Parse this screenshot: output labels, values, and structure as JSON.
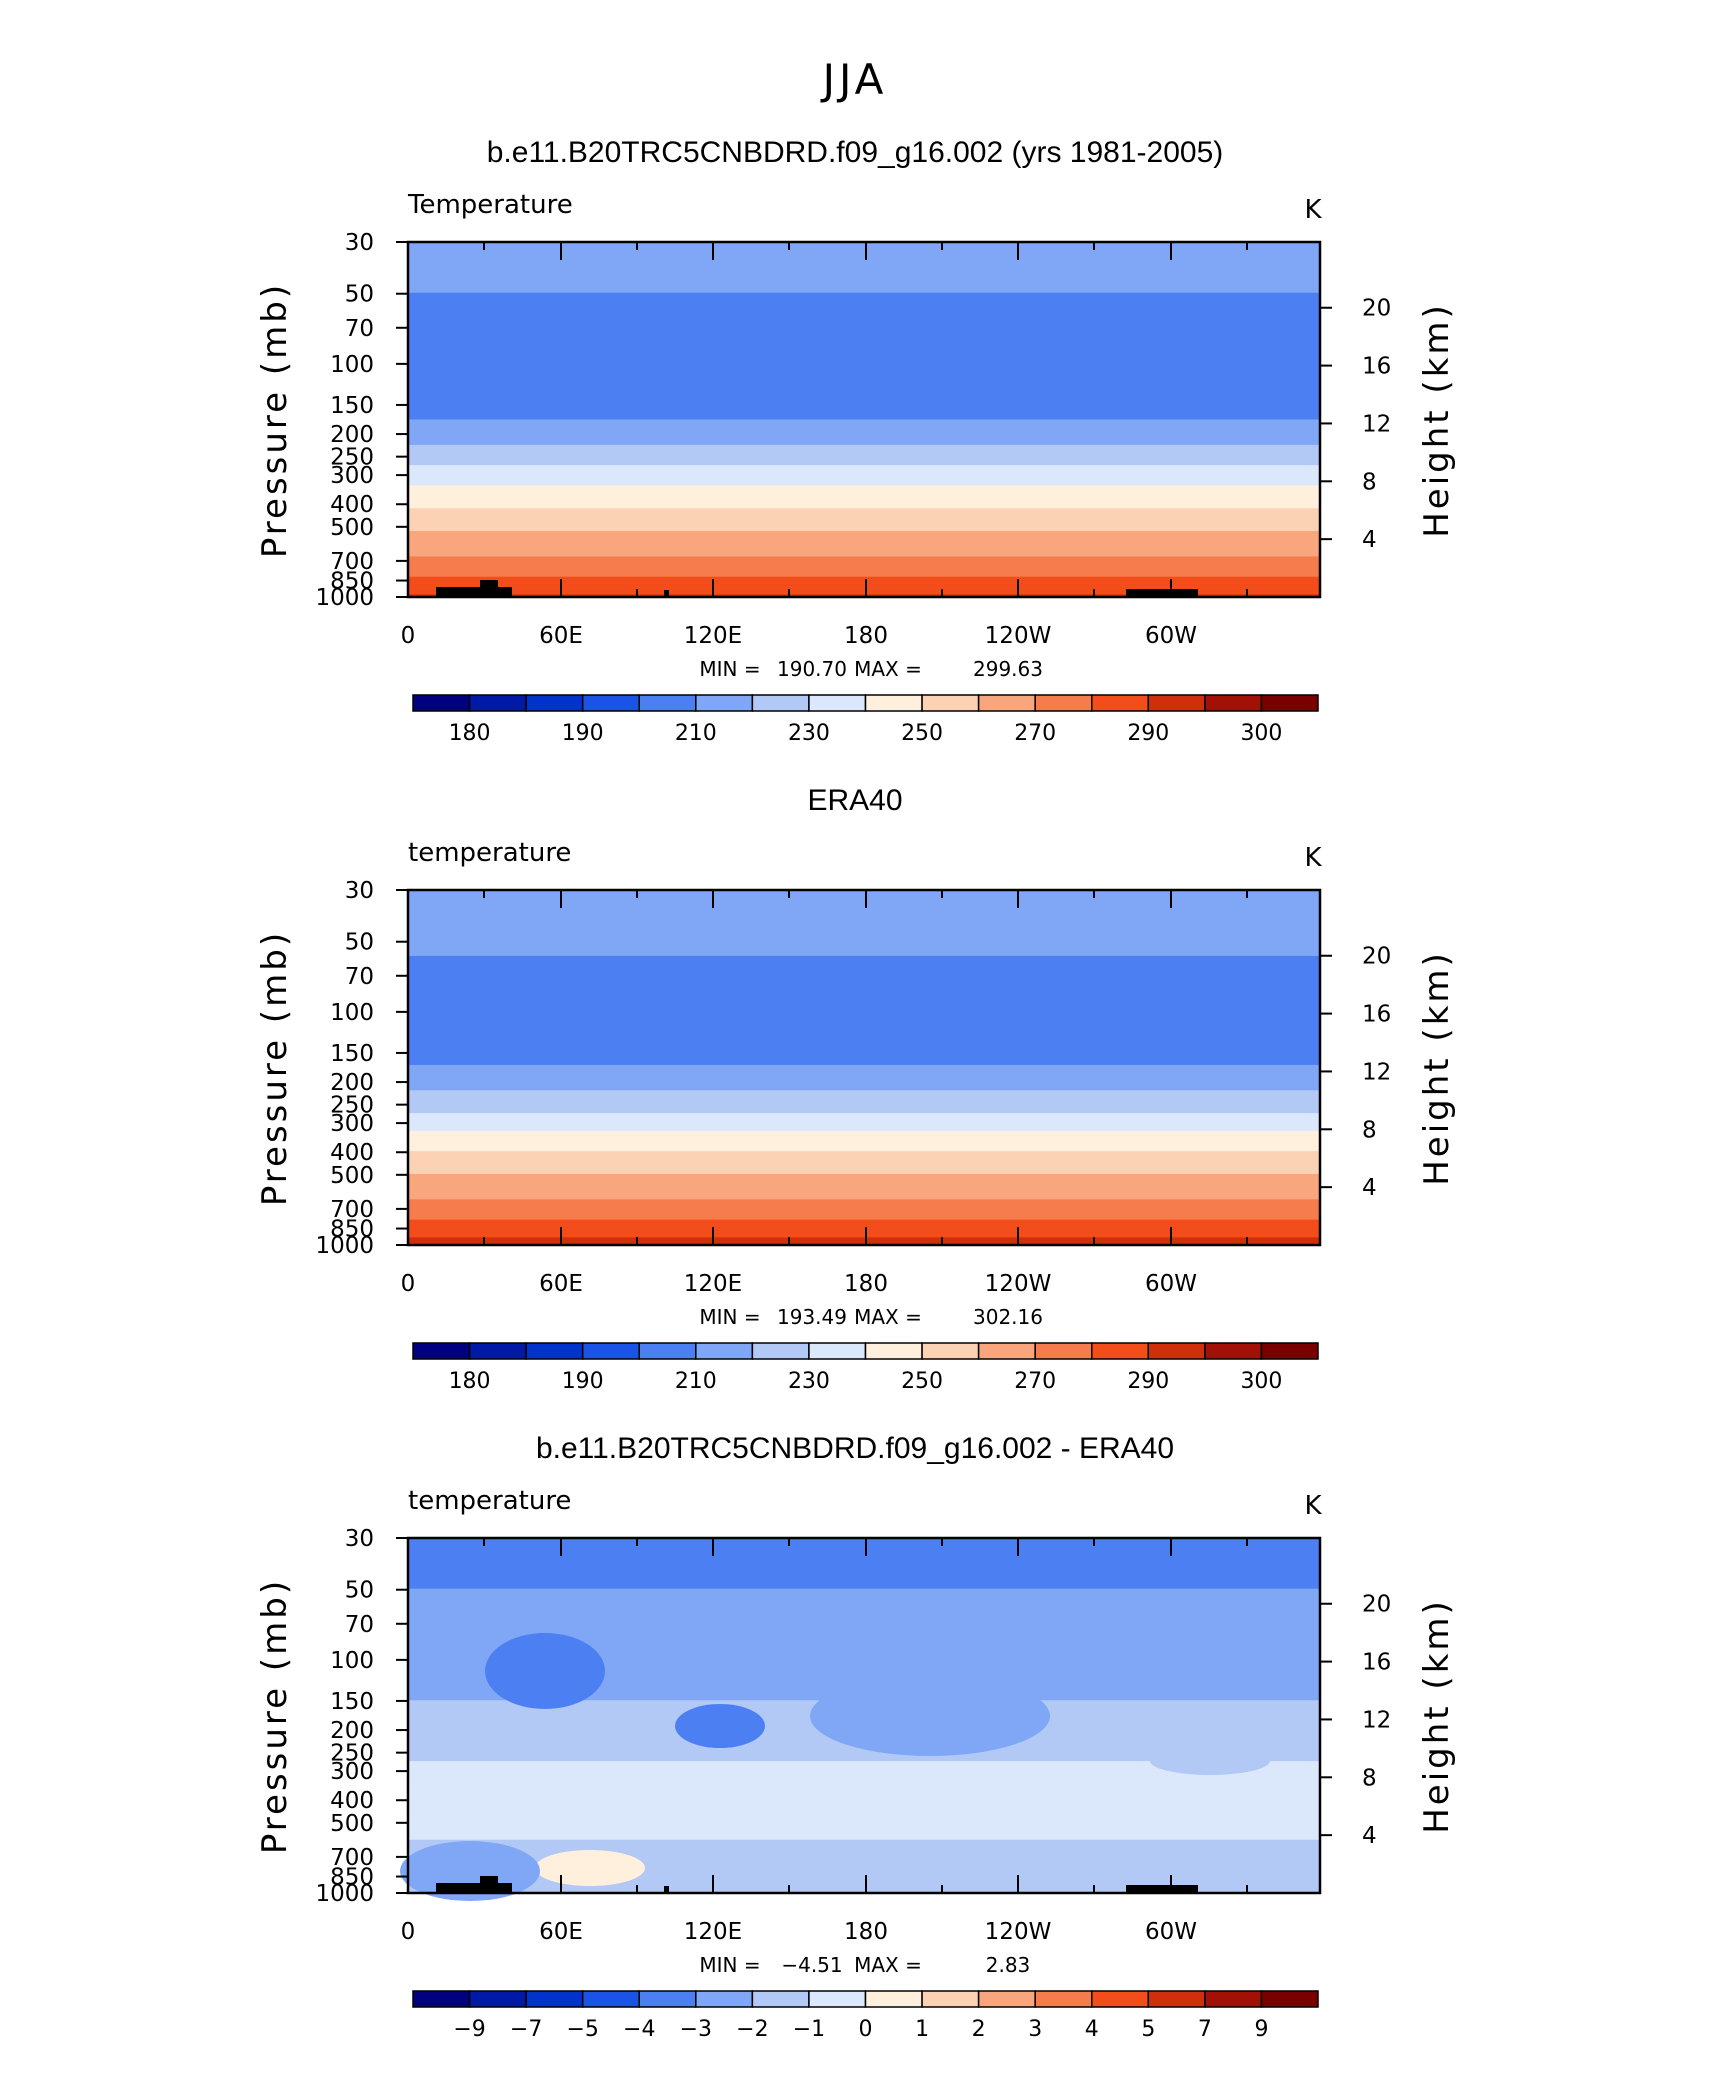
{
  "figure": {
    "title": "JJA"
  },
  "colors": {
    "absolute_scale": [
      "#000080",
      "#0019a6",
      "#0033cc",
      "#1a53e6",
      "#4c80f2",
      "#80a7f5",
      "#b3c9f5",
      "#dbe7fb",
      "#fff0dd",
      "#fcd2b4",
      "#f9a67e",
      "#f77c4d",
      "#f24d1a",
      "#d12f0b",
      "#a31006",
      "#7a0000"
    ],
    "diff_scale": [
      "#000080",
      "#0019a6",
      "#0033cc",
      "#1a53e6",
      "#4c80f2",
      "#80a7f5",
      "#b3c9f5",
      "#dbe7fb",
      "#fff0dd",
      "#fcd2b4",
      "#f9a67e",
      "#f77c4d",
      "#f24d1a",
      "#d12f0b",
      "#a31006",
      "#7a0000"
    ],
    "topography": "#000000"
  },
  "chart_data": [
    {
      "type": "heatmap",
      "title": "b.e11.B20TRC5CNBDRD.f09_g16.002 (yrs 1981-2005)",
      "variable_label": "Temperature",
      "units": "K",
      "xlabel": "",
      "ylabel": "Pressure (mb)",
      "ylabel_right": "Height (km)",
      "x_ticks": [
        "0",
        "60E",
        "120E",
        "180",
        "120W",
        "60W"
      ],
      "y_ticks": [
        "30",
        "50",
        "70",
        "100",
        "150",
        "200",
        "250",
        "300",
        "400",
        "500",
        "700",
        "850",
        "1000"
      ],
      "y_ticks_right": [
        "20",
        "16",
        "12",
        "8",
        "4"
      ],
      "ylim": [
        1000,
        30
      ],
      "y_scale": "log",
      "stats": {
        "min_label": "MIN =",
        "min": "190.70",
        "max_label": "MAX =",
        "max": "299.63"
      },
      "colorbar_labels": [
        "180",
        "190",
        "210",
        "230",
        "250",
        "270",
        "290",
        "300"
      ],
      "topography": true,
      "zonal_mean_profile": [
        {
          "p": 30,
          "T": 218
        },
        {
          "p": 50,
          "T": 210
        },
        {
          "p": 70,
          "T": 205
        },
        {
          "p": 100,
          "T": 200
        },
        {
          "p": 150,
          "T": 205
        },
        {
          "p": 200,
          "T": 215
        },
        {
          "p": 250,
          "T": 225
        },
        {
          "p": 300,
          "T": 235
        },
        {
          "p": 400,
          "T": 248
        },
        {
          "p": 500,
          "T": 258
        },
        {
          "p": 700,
          "T": 272
        },
        {
          "p": 850,
          "T": 282
        },
        {
          "p": 1000,
          "T": 292
        }
      ]
    },
    {
      "type": "heatmap",
      "title": "ERA40",
      "variable_label": "temperature",
      "units": "K",
      "xlabel": "",
      "ylabel": "Pressure (mb)",
      "ylabel_right": "Height (km)",
      "x_ticks": [
        "0",
        "60E",
        "120E",
        "180",
        "120W",
        "60W"
      ],
      "y_ticks": [
        "30",
        "50",
        "70",
        "100",
        "150",
        "200",
        "250",
        "300",
        "400",
        "500",
        "700",
        "850",
        "1000"
      ],
      "y_ticks_right": [
        "20",
        "16",
        "12",
        "8",
        "4"
      ],
      "ylim": [
        1000,
        30
      ],
      "y_scale": "log",
      "stats": {
        "min_label": "MIN =",
        "min": "193.49",
        "max_label": "MAX =",
        "max": "302.16"
      },
      "colorbar_labels": [
        "180",
        "190",
        "210",
        "230",
        "250",
        "270",
        "290",
        "300"
      ],
      "topography": false,
      "zonal_mean_profile": [
        {
          "p": 30,
          "T": 220
        },
        {
          "p": 50,
          "T": 212
        },
        {
          "p": 70,
          "T": 207
        },
        {
          "p": 100,
          "T": 201
        },
        {
          "p": 150,
          "T": 206
        },
        {
          "p": 200,
          "T": 216
        },
        {
          "p": 250,
          "T": 226
        },
        {
          "p": 300,
          "T": 236
        },
        {
          "p": 400,
          "T": 250
        },
        {
          "p": 500,
          "T": 260
        },
        {
          "p": 700,
          "T": 274
        },
        {
          "p": 850,
          "T": 284
        },
        {
          "p": 1000,
          "T": 295
        }
      ]
    },
    {
      "type": "heatmap",
      "title": "b.e11.B20TRC5CNBDRD.f09_g16.002 - ERA40",
      "variable_label": "temperature",
      "units": "K",
      "xlabel": "",
      "ylabel": "Pressure (mb)",
      "ylabel_right": "Height (km)",
      "x_ticks": [
        "0",
        "60E",
        "120E",
        "180",
        "120W",
        "60W"
      ],
      "y_ticks": [
        "30",
        "50",
        "70",
        "100",
        "150",
        "200",
        "250",
        "300",
        "400",
        "500",
        "700",
        "850",
        "1000"
      ],
      "y_ticks_right": [
        "20",
        "16",
        "12",
        "8",
        "4"
      ],
      "ylim": [
        1000,
        30
      ],
      "y_scale": "log",
      "stats": {
        "min_label": "MIN =",
        "min": "−4.51",
        "max_label": "MAX =",
        "max": "2.83"
      },
      "colorbar_labels": [
        "−9",
        "−7",
        "−5",
        "−4",
        "−3",
        "−2",
        "−1",
        "0",
        "1",
        "2",
        "3",
        "4",
        "5",
        "7",
        "9"
      ],
      "topography": true,
      "zonal_mean_profile": [
        {
          "p": 30,
          "T": -3.5
        },
        {
          "p": 50,
          "T": -3.0
        },
        {
          "p": 70,
          "T": -3.0
        },
        {
          "p": 100,
          "T": -3.0
        },
        {
          "p": 150,
          "T": -2.0
        },
        {
          "p": 200,
          "T": -1.5
        },
        {
          "p": 250,
          "T": -1.5
        },
        {
          "p": 300,
          "T": -0.5
        },
        {
          "p": 400,
          "T": -0.5
        },
        {
          "p": 500,
          "T": -0.5
        },
        {
          "p": 700,
          "T": -1.5
        },
        {
          "p": 850,
          "T": -2.0
        },
        {
          "p": 1000,
          "T": -2.0
        }
      ]
    }
  ]
}
